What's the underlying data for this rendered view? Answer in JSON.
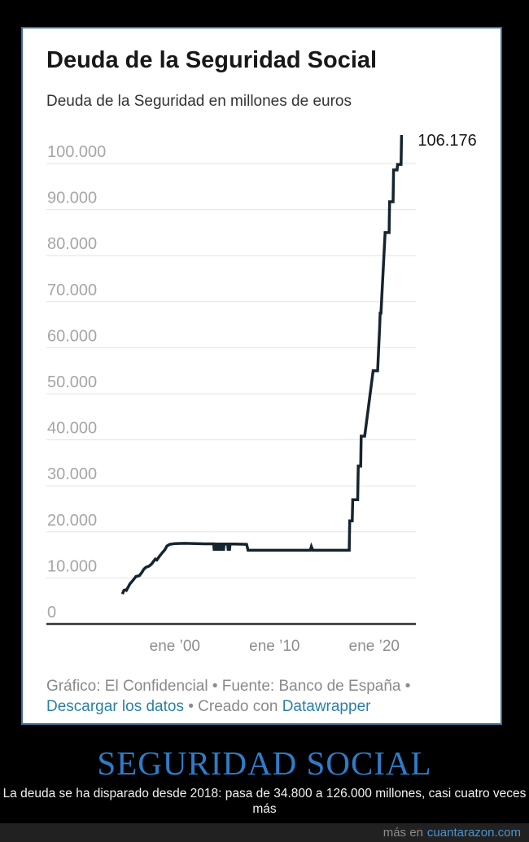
{
  "card": {
    "title": "Deuda de la Seguridad Social",
    "subtitle": "Deuda de la Seguridad en millones de euros",
    "credits": {
      "part1": "Gráfico: El Confidencial • Fuente: Banco de España • ",
      "link1": "Descargar los datos",
      "part2": " • Creado con ",
      "link2": "Datawrapper"
    }
  },
  "chart_data": {
    "type": "line",
    "title": "Deuda de la Seguridad Social",
    "subtitle": "Deuda de la Seguridad en millones de euros",
    "ylabel": "millones de euros",
    "xlabel": "",
    "ylim": [
      0,
      110000
    ],
    "xlim": [
      1994.5,
      2023.3
    ],
    "grid": true,
    "legend": "none",
    "line_color": "#16242f",
    "annotation": {
      "label": "106.176",
      "value": 106176,
      "year": 2022.75
    },
    "y_ticks": [
      {
        "value": 0,
        "label": "0"
      },
      {
        "value": 10000,
        "label": "10.000"
      },
      {
        "value": 20000,
        "label": "20.000"
      },
      {
        "value": 30000,
        "label": "30.000"
      },
      {
        "value": 40000,
        "label": "40.000"
      },
      {
        "value": 50000,
        "label": "50.000"
      },
      {
        "value": 60000,
        "label": "60.000"
      },
      {
        "value": 70000,
        "label": "70.000"
      },
      {
        "value": 80000,
        "label": "80.000"
      },
      {
        "value": 90000,
        "label": "90.000"
      },
      {
        "value": 100000,
        "label": "100.000"
      }
    ],
    "x_ticks": [
      {
        "year": 2000,
        "label": "ene ’00"
      },
      {
        "year": 2010,
        "label": "ene ’10"
      },
      {
        "year": 2020,
        "label": "ene ’20"
      }
    ],
    "points": [
      [
        1994.75,
        6500
      ],
      [
        1994.9,
        7300
      ],
      [
        1995.05,
        7400
      ],
      [
        1995.15,
        7300
      ],
      [
        1995.5,
        8700
      ],
      [
        1995.85,
        9600
      ],
      [
        1996.1,
        10300
      ],
      [
        1996.45,
        10500
      ],
      [
        1996.7,
        11200
      ],
      [
        1996.9,
        11900
      ],
      [
        1997.1,
        12300
      ],
      [
        1997.45,
        12600
      ],
      [
        1997.7,
        13100
      ],
      [
        1997.9,
        13700
      ],
      [
        1998.05,
        14100
      ],
      [
        1998.2,
        13900
      ],
      [
        1998.5,
        14800
      ],
      [
        1998.8,
        15600
      ],
      [
        1999.0,
        16100
      ],
      [
        1999.2,
        16900
      ],
      [
        1999.5,
        17300
      ],
      [
        2000.0,
        17450
      ],
      [
        2001.0,
        17500
      ],
      [
        2002.2,
        17450
      ],
      [
        2003.0,
        17400
      ],
      [
        2003.9,
        17400
      ],
      [
        2003.95,
        16200
      ],
      [
        2004.1,
        16200
      ],
      [
        2004.15,
        17350
      ],
      [
        2004.3,
        17350
      ],
      [
        2004.35,
        16200
      ],
      [
        2004.5,
        16200
      ],
      [
        2004.55,
        17350
      ],
      [
        2004.7,
        17350
      ],
      [
        2004.75,
        16200
      ],
      [
        2004.9,
        16200
      ],
      [
        2004.95,
        17350
      ],
      [
        2005.3,
        17350
      ],
      [
        2005.35,
        16200
      ],
      [
        2005.5,
        16200
      ],
      [
        2005.55,
        17350
      ],
      [
        2006.0,
        17350
      ],
      [
        2007.2,
        17300
      ],
      [
        2007.35,
        16000
      ],
      [
        2010.0,
        16000
      ],
      [
        2013.6,
        16000
      ],
      [
        2013.7,
        16800
      ],
      [
        2013.85,
        16000
      ],
      [
        2017.5,
        16000
      ],
      [
        2017.55,
        22400
      ],
      [
        2017.8,
        22400
      ],
      [
        2017.85,
        27000
      ],
      [
        2018.35,
        27000
      ],
      [
        2018.4,
        34300
      ],
      [
        2018.65,
        34300
      ],
      [
        2018.7,
        40800
      ],
      [
        2019.05,
        40800
      ],
      [
        2019.9,
        55000
      ],
      [
        2020.35,
        55000
      ],
      [
        2020.55,
        64500
      ],
      [
        2020.6,
        67500
      ],
      [
        2020.68,
        67500
      ],
      [
        2021.1,
        85000
      ],
      [
        2021.5,
        85000
      ],
      [
        2021.55,
        91700
      ],
      [
        2021.9,
        91700
      ],
      [
        2021.95,
        98600
      ],
      [
        2022.3,
        98600
      ],
      [
        2022.35,
        99800
      ],
      [
        2022.7,
        99800
      ],
      [
        2022.75,
        106176
      ]
    ]
  },
  "meme": {
    "title": "SEGURIDAD SOCIAL",
    "caption": "La deuda se ha disparado desde 2018: pasa de 34.800 a 126.000 millones, casi cuatro veces más",
    "watermark_prefix": "más en",
    "watermark_site": "cuantarazon.com"
  },
  "colors": {
    "meme_title": "#2e7cc9",
    "watermark_site": "#4e93cd"
  }
}
